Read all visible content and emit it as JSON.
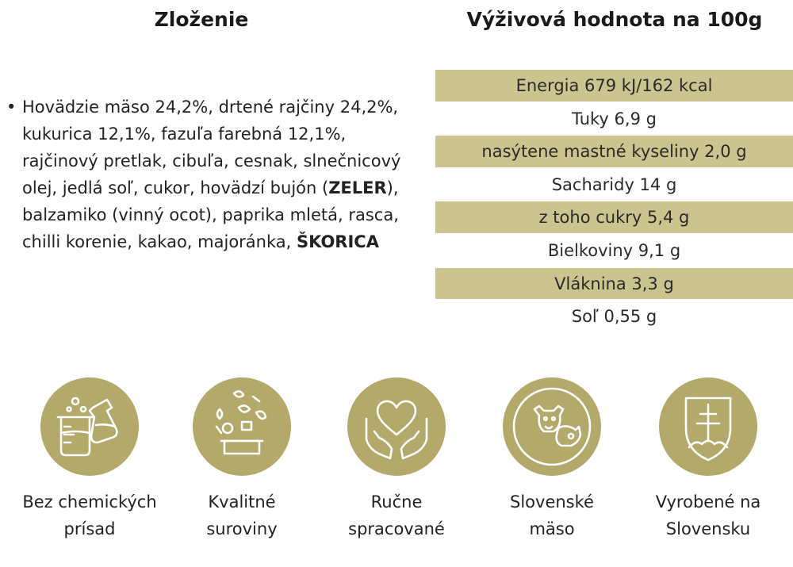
{
  "ingredients": {
    "heading": "Zloženie",
    "segments": [
      {
        "text": "Hovädzie mäso 24,2%, drtené rajčiny 24,2%, kukurica 12,1%, fazuľa farebná 12,1%, rajčinový pretlak, cibuľa, cesnak, slnečnicový olej, jedlá soľ, cukor, hovädzí bujón ("
      },
      {
        "text": "ZELER",
        "emphasis": true
      },
      {
        "text": "), balzamiko (vinný ocot), paprika mletá, rasca, chilli korenie, kakao, majoránka, "
      },
      {
        "text": "ŠKORICA",
        "emphasis": true
      }
    ]
  },
  "nutrition": {
    "heading": "Výživová hodnota na 100g",
    "rows": [
      {
        "label": "Energia 679 kJ/162 kcal",
        "shaded": true
      },
      {
        "label": "Tuky 6,9 g",
        "shaded": false
      },
      {
        "label": "nasýtene mastné kyseliny 2,0 g",
        "shaded": true
      },
      {
        "label": "Sacharidy 14 g",
        "shaded": false
      },
      {
        "label": "z toho cukry 5,4 g",
        "shaded": true
      },
      {
        "label": "Bielkoviny 9,1 g",
        "shaded": false
      },
      {
        "label": "Vláknina 3,3 g",
        "shaded": true
      },
      {
        "label": "Soľ 0,55 g",
        "shaded": false
      }
    ]
  },
  "features": [
    {
      "icon": "lab-flask-icon",
      "line1": "Bez chemických",
      "line2": "prísad"
    },
    {
      "icon": "vegetables-box-icon",
      "line1": "Kvalitné",
      "line2": "suroviny"
    },
    {
      "icon": "heart-hands-icon",
      "line1": "Ručne",
      "line2": "spracované"
    },
    {
      "icon": "cow-pig-icon",
      "line1": "Slovenské",
      "line2": "mäso"
    },
    {
      "icon": "slovak-shield-icon",
      "line1": "Vyrobené na",
      "line2": "Slovensku"
    }
  ],
  "colors": {
    "badge": "#b3a96a",
    "row_shade": "#cbc48f",
    "icon_line": "#ffffff"
  }
}
